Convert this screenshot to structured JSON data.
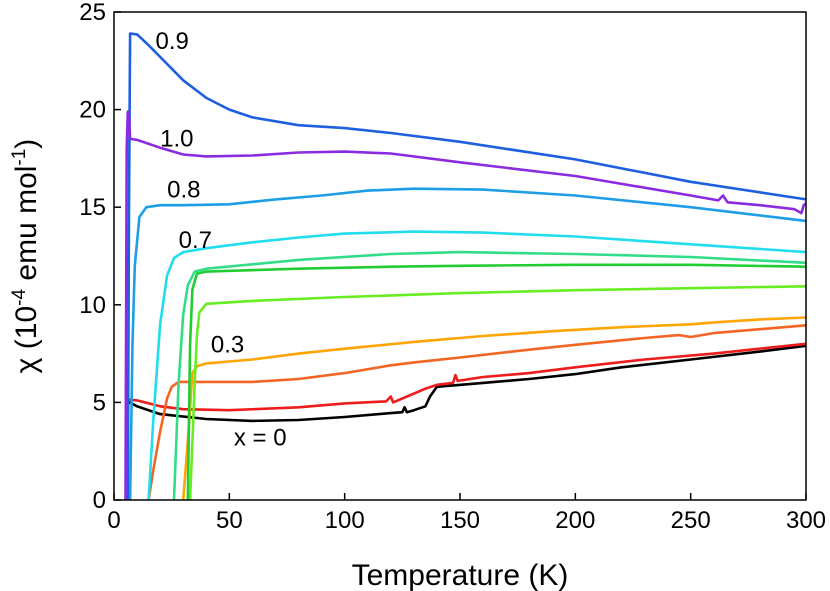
{
  "chart_data": {
    "type": "line",
    "xlabel": "Temperature (K)",
    "ylabel": {
      "base": "χ (10",
      "exp1": "-4",
      "mid": " emu mol",
      "exp2": "-1",
      "end": ")"
    },
    "xlim": [
      0,
      300
    ],
    "ylim": [
      0,
      25
    ],
    "xticks": [
      "0",
      "50",
      "100",
      "150",
      "200",
      "250",
      "300"
    ],
    "yticks": [
      "0",
      "5",
      "10",
      "15",
      "20",
      "25"
    ],
    "grid": false,
    "legend": "none",
    "series": [
      {
        "name": "x = 0",
        "color": "#000000",
        "points": [
          [
            5,
            5.1
          ],
          [
            10,
            4.8
          ],
          [
            20,
            4.4
          ],
          [
            40,
            4.15
          ],
          [
            60,
            4.05
          ],
          [
            80,
            4.1
          ],
          [
            100,
            4.25
          ],
          [
            120,
            4.45
          ],
          [
            125,
            4.5
          ],
          [
            126,
            4.75
          ],
          [
            127,
            4.5
          ],
          [
            130,
            4.6
          ],
          [
            135,
            4.8
          ],
          [
            137,
            5.3
          ],
          [
            140,
            5.8
          ],
          [
            160,
            6.0
          ],
          [
            180,
            6.2
          ],
          [
            200,
            6.45
          ],
          [
            220,
            6.8
          ],
          [
            250,
            7.2
          ],
          [
            280,
            7.6
          ],
          [
            300,
            7.9
          ]
        ]
      },
      {
        "color": "#ee1c1c",
        "points": [
          [
            5,
            5.2
          ],
          [
            6,
            5.15
          ],
          [
            10,
            5.1
          ],
          [
            20,
            4.8
          ],
          [
            30,
            4.65
          ],
          [
            50,
            4.6
          ],
          [
            80,
            4.75
          ],
          [
            100,
            4.95
          ],
          [
            118,
            5.05
          ],
          [
            120,
            5.3
          ],
          [
            121,
            5.0
          ],
          [
            125,
            5.2
          ],
          [
            135,
            5.7
          ],
          [
            140,
            5.9
          ],
          [
            147,
            6.0
          ],
          [
            148,
            6.4
          ],
          [
            149,
            6.1
          ],
          [
            160,
            6.3
          ],
          [
            180,
            6.5
          ],
          [
            200,
            6.8
          ],
          [
            230,
            7.2
          ],
          [
            260,
            7.5
          ],
          [
            300,
            8.0
          ]
        ]
      },
      {
        "color": "#f26522",
        "points": [
          [
            15,
            0
          ],
          [
            17,
            1.5
          ],
          [
            20,
            3.5
          ],
          [
            23,
            5.2
          ],
          [
            25,
            5.8
          ],
          [
            28,
            6.05
          ],
          [
            40,
            6.05
          ],
          [
            60,
            6.05
          ],
          [
            80,
            6.2
          ],
          [
            100,
            6.5
          ],
          [
            120,
            6.9
          ],
          [
            130,
            7.05
          ],
          [
            150,
            7.3
          ],
          [
            180,
            7.7
          ],
          [
            200,
            7.95
          ],
          [
            230,
            8.3
          ],
          [
            245,
            8.45
          ],
          [
            250,
            8.35
          ],
          [
            260,
            8.55
          ],
          [
            280,
            8.75
          ],
          [
            300,
            8.95
          ]
        ]
      },
      {
        "name": "0.3",
        "color": "#ffa500",
        "points": [
          [
            30,
            0
          ],
          [
            32,
            3
          ],
          [
            34,
            6.5
          ],
          [
            36,
            6.85
          ],
          [
            40,
            7.0
          ],
          [
            60,
            7.2
          ],
          [
            80,
            7.5
          ],
          [
            100,
            7.75
          ],
          [
            130,
            8.1
          ],
          [
            160,
            8.4
          ],
          [
            190,
            8.65
          ],
          [
            220,
            8.85
          ],
          [
            250,
            9.0
          ],
          [
            260,
            9.1
          ],
          [
            280,
            9.25
          ],
          [
            300,
            9.35
          ]
        ]
      },
      {
        "color": "#66ee22",
        "points": [
          [
            33,
            0
          ],
          [
            35,
            6
          ],
          [
            36,
            8.5
          ],
          [
            37,
            9.6
          ],
          [
            40,
            10.05
          ],
          [
            60,
            10.2
          ],
          [
            100,
            10.4
          ],
          [
            150,
            10.6
          ],
          [
            200,
            10.75
          ],
          [
            250,
            10.85
          ],
          [
            300,
            10.95
          ]
        ]
      },
      {
        "color": "#22cc33",
        "points": [
          [
            32,
            0
          ],
          [
            33,
            8
          ],
          [
            34,
            10.8
          ],
          [
            36,
            11.6
          ],
          [
            40,
            11.7
          ],
          [
            80,
            11.85
          ],
          [
            120,
            11.95
          ],
          [
            150,
            12.0
          ],
          [
            200,
            12.05
          ],
          [
            250,
            12.05
          ],
          [
            300,
            11.95
          ]
        ]
      },
      {
        "color": "#33dd88",
        "points": [
          [
            26,
            0
          ],
          [
            28,
            6
          ],
          [
            30,
            9.5
          ],
          [
            32,
            11.0
          ],
          [
            35,
            11.7
          ],
          [
            40,
            11.85
          ],
          [
            80,
            12.3
          ],
          [
            120,
            12.6
          ],
          [
            150,
            12.7
          ],
          [
            200,
            12.6
          ],
          [
            250,
            12.45
          ],
          [
            300,
            12.15
          ]
        ]
      },
      {
        "name": "0.7",
        "color": "#22ddee",
        "points": [
          [
            15,
            0
          ],
          [
            17,
            4
          ],
          [
            20,
            9
          ],
          [
            23,
            11.5
          ],
          [
            26,
            12.4
          ],
          [
            30,
            12.7
          ],
          [
            40,
            12.9
          ],
          [
            60,
            13.2
          ],
          [
            80,
            13.45
          ],
          [
            100,
            13.65
          ],
          [
            130,
            13.75
          ],
          [
            160,
            13.7
          ],
          [
            200,
            13.5
          ],
          [
            250,
            13.1
          ],
          [
            300,
            12.7
          ]
        ]
      },
      {
        "name": "0.8",
        "color": "#1e9ee6",
        "points": [
          [
            7,
            0
          ],
          [
            8,
            8
          ],
          [
            9,
            12
          ],
          [
            11,
            14.5
          ],
          [
            14,
            15.0
          ],
          [
            20,
            15.1
          ],
          [
            30,
            15.1
          ],
          [
            50,
            15.15
          ],
          [
            70,
            15.4
          ],
          [
            90,
            15.6
          ],
          [
            110,
            15.85
          ],
          [
            130,
            15.95
          ],
          [
            160,
            15.9
          ],
          [
            200,
            15.6
          ],
          [
            250,
            15.0
          ],
          [
            300,
            14.3
          ]
        ]
      },
      {
        "name": "0.9",
        "color": "#1e5fe0",
        "points": [
          [
            6,
            0
          ],
          [
            6.5,
            15
          ],
          [
            7,
            23.9
          ],
          [
            10,
            23.85
          ],
          [
            15,
            23.3
          ],
          [
            20,
            22.7
          ],
          [
            30,
            21.5
          ],
          [
            40,
            20.6
          ],
          [
            50,
            20.0
          ],
          [
            60,
            19.6
          ],
          [
            80,
            19.2
          ],
          [
            100,
            19.05
          ],
          [
            120,
            18.8
          ],
          [
            150,
            18.35
          ],
          [
            200,
            17.45
          ],
          [
            250,
            16.3
          ],
          [
            300,
            15.4
          ]
        ]
      },
      {
        "name": "1.0",
        "color": "#8a2be2",
        "points": [
          [
            5,
            0
          ],
          [
            5.5,
            18
          ],
          [
            6,
            19.9
          ],
          [
            6.5,
            19.7
          ],
          [
            7,
            18.5
          ],
          [
            10,
            18.45
          ],
          [
            20,
            18.05
          ],
          [
            30,
            17.7
          ],
          [
            40,
            17.6
          ],
          [
            60,
            17.65
          ],
          [
            80,
            17.8
          ],
          [
            100,
            17.85
          ],
          [
            120,
            17.75
          ],
          [
            150,
            17.3
          ],
          [
            200,
            16.6
          ],
          [
            250,
            15.6
          ],
          [
            262,
            15.35
          ],
          [
            264,
            15.6
          ],
          [
            266,
            15.25
          ],
          [
            280,
            15.1
          ],
          [
            295,
            14.9
          ],
          [
            298,
            14.7
          ],
          [
            299,
            15.1
          ],
          [
            300,
            15.2
          ]
        ]
      }
    ],
    "labels": [
      {
        "text": "0.9",
        "x": 18,
        "y": 23.1
      },
      {
        "text": "1.0",
        "x": 20,
        "y": 18.1
      },
      {
        "text": "0.8",
        "x": 23,
        "y": 15.5
      },
      {
        "text": "0.7",
        "x": 28,
        "y": 12.9
      },
      {
        "text": "0.3",
        "x": 42,
        "y": 7.55
      },
      {
        "text": "x = 0",
        "x": 52,
        "y": 2.8
      }
    ]
  }
}
